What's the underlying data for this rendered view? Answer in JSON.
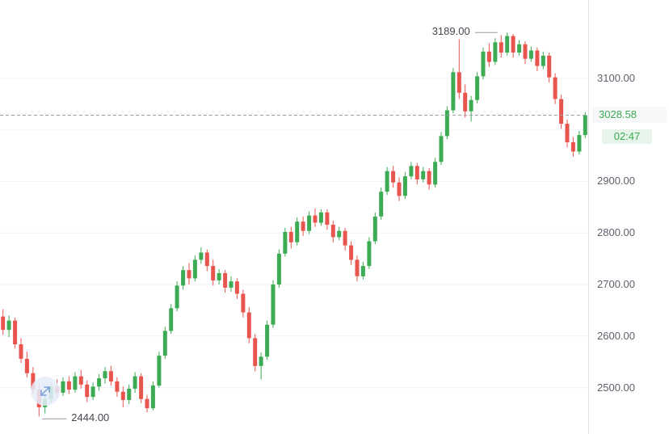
{
  "chart": {
    "high_label": "3189.00",
    "low_label": "2444.00",
    "price_badge": "3028.58",
    "countdown": "02:47",
    "colors": {
      "up": "#3cab53",
      "down": "#e8544e",
      "grid": "#f0f3f7",
      "dashed_line": "#999ea8",
      "annotation_line": "#9598a1",
      "axis_text": "#5c616b",
      "accent_blue": "#6f97dd"
    }
  },
  "chart_data": {
    "type": "candlestick",
    "title": "",
    "legend_position": "none",
    "grid": true,
    "last_price": 3028.58,
    "high": 3189.0,
    "low": 2444.0,
    "y_axis": {
      "range": [
        2410,
        3252
      ],
      "ticks": [
        3100,
        2900,
        2800,
        2700,
        2600,
        2500
      ],
      "grid_levels": [
        3100,
        3000,
        2900,
        2800,
        2700,
        2600,
        2500
      ]
    },
    "candles": [
      [
        2638,
        2652,
        2602,
        2612
      ],
      [
        2612,
        2640,
        2598,
        2630
      ],
      [
        2630,
        2636,
        2576,
        2584
      ],
      [
        2584,
        2596,
        2548,
        2556
      ],
      [
        2556,
        2570,
        2520,
        2528
      ],
      [
        2528,
        2540,
        2488,
        2496
      ],
      [
        2496,
        2508,
        2444,
        2462
      ],
      [
        2462,
        2488,
        2450,
        2478
      ],
      [
        2478,
        2512,
        2470,
        2502
      ],
      [
        2502,
        2516,
        2480,
        2490
      ],
      [
        2490,
        2520,
        2484,
        2512
      ],
      [
        2512,
        2522,
        2488,
        2496
      ],
      [
        2496,
        2530,
        2490,
        2522
      ],
      [
        2522,
        2534,
        2498,
        2506
      ],
      [
        2506,
        2514,
        2472,
        2482
      ],
      [
        2482,
        2510,
        2476,
        2502
      ],
      [
        2502,
        2526,
        2494,
        2518
      ],
      [
        2518,
        2540,
        2508,
        2532
      ],
      [
        2532,
        2542,
        2504,
        2512
      ],
      [
        2512,
        2520,
        2482,
        2492
      ],
      [
        2492,
        2502,
        2462,
        2476
      ],
      [
        2476,
        2506,
        2468,
        2498
      ],
      [
        2498,
        2530,
        2490,
        2522
      ],
      [
        2522,
        2528,
        2470,
        2478
      ],
      [
        2478,
        2486,
        2452,
        2460
      ],
      [
        2460,
        2512,
        2456,
        2504
      ],
      [
        2504,
        2570,
        2500,
        2562
      ],
      [
        2562,
        2618,
        2556,
        2610
      ],
      [
        2610,
        2662,
        2604,
        2654
      ],
      [
        2654,
        2706,
        2648,
        2698
      ],
      [
        2698,
        2736,
        2690,
        2728
      ],
      [
        2728,
        2742,
        2700,
        2712
      ],
      [
        2712,
        2756,
        2706,
        2748
      ],
      [
        2748,
        2772,
        2740,
        2762
      ],
      [
        2762,
        2768,
        2726,
        2736
      ],
      [
        2736,
        2748,
        2698,
        2708
      ],
      [
        2708,
        2730,
        2700,
        2722
      ],
      [
        2722,
        2728,
        2684,
        2694
      ],
      [
        2694,
        2716,
        2686,
        2706
      ],
      [
        2706,
        2712,
        2672,
        2682
      ],
      [
        2682,
        2690,
        2636,
        2646
      ],
      [
        2646,
        2656,
        2586,
        2596
      ],
      [
        2596,
        2604,
        2532,
        2542
      ],
      [
        2542,
        2568,
        2516,
        2560
      ],
      [
        2560,
        2630,
        2554,
        2622
      ],
      [
        2622,
        2708,
        2616,
        2700
      ],
      [
        2700,
        2768,
        2694,
        2760
      ],
      [
        2760,
        2810,
        2754,
        2802
      ],
      [
        2802,
        2812,
        2770,
        2782
      ],
      [
        2782,
        2830,
        2776,
        2822
      ],
      [
        2822,
        2832,
        2794,
        2804
      ],
      [
        2804,
        2842,
        2798,
        2834
      ],
      [
        2834,
        2848,
        2812,
        2820
      ],
      [
        2820,
        2846,
        2814,
        2840
      ],
      [
        2840,
        2846,
        2806,
        2816
      ],
      [
        2816,
        2824,
        2782,
        2792
      ],
      [
        2792,
        2812,
        2786,
        2804
      ],
      [
        2804,
        2810,
        2766,
        2776
      ],
      [
        2776,
        2784,
        2738,
        2748
      ],
      [
        2748,
        2756,
        2706,
        2716
      ],
      [
        2716,
        2744,
        2710,
        2736
      ],
      [
        2736,
        2792,
        2730,
        2784
      ],
      [
        2784,
        2840,
        2778,
        2832
      ],
      [
        2832,
        2888,
        2826,
        2880
      ],
      [
        2880,
        2928,
        2874,
        2920
      ],
      [
        2920,
        2930,
        2888,
        2898
      ],
      [
        2898,
        2908,
        2862,
        2872
      ],
      [
        2872,
        2918,
        2866,
        2910
      ],
      [
        2910,
        2938,
        2904,
        2930
      ],
      [
        2930,
        2936,
        2894,
        2904
      ],
      [
        2904,
        2928,
        2898,
        2920
      ],
      [
        2920,
        2926,
        2884,
        2894
      ],
      [
        2894,
        2946,
        2888,
        2938
      ],
      [
        2938,
        2996,
        2932,
        2988
      ],
      [
        2988,
        3046,
        2982,
        3038
      ],
      [
        3038,
        3120,
        3032,
        3112
      ],
      [
        3112,
        3176,
        3060,
        3072
      ],
      [
        3072,
        3088,
        3024,
        3036
      ],
      [
        3036,
        3066,
        3016,
        3058
      ],
      [
        3058,
        3112,
        3052,
        3104
      ],
      [
        3104,
        3160,
        3098,
        3152
      ],
      [
        3152,
        3168,
        3122,
        3132
      ],
      [
        3132,
        3178,
        3126,
        3170
      ],
      [
        3170,
        3184,
        3140,
        3150
      ],
      [
        3150,
        3189,
        3144,
        3182
      ],
      [
        3182,
        3186,
        3140,
        3150
      ],
      [
        3150,
        3174,
        3144,
        3166
      ],
      [
        3166,
        3172,
        3128,
        3138
      ],
      [
        3138,
        3162,
        3132,
        3154
      ],
      [
        3154,
        3160,
        3114,
        3124
      ],
      [
        3124,
        3152,
        3118,
        3144
      ],
      [
        3144,
        3150,
        3092,
        3102
      ],
      [
        3102,
        3110,
        3050,
        3060
      ],
      [
        3060,
        3068,
        3002,
        3012
      ],
      [
        3012,
        3020,
        2966,
        2976
      ],
      [
        2976,
        2986,
        2948,
        2958
      ],
      [
        2958,
        2998,
        2952,
        2990
      ],
      [
        2990,
        3034,
        2984,
        3028.58
      ]
    ]
  }
}
